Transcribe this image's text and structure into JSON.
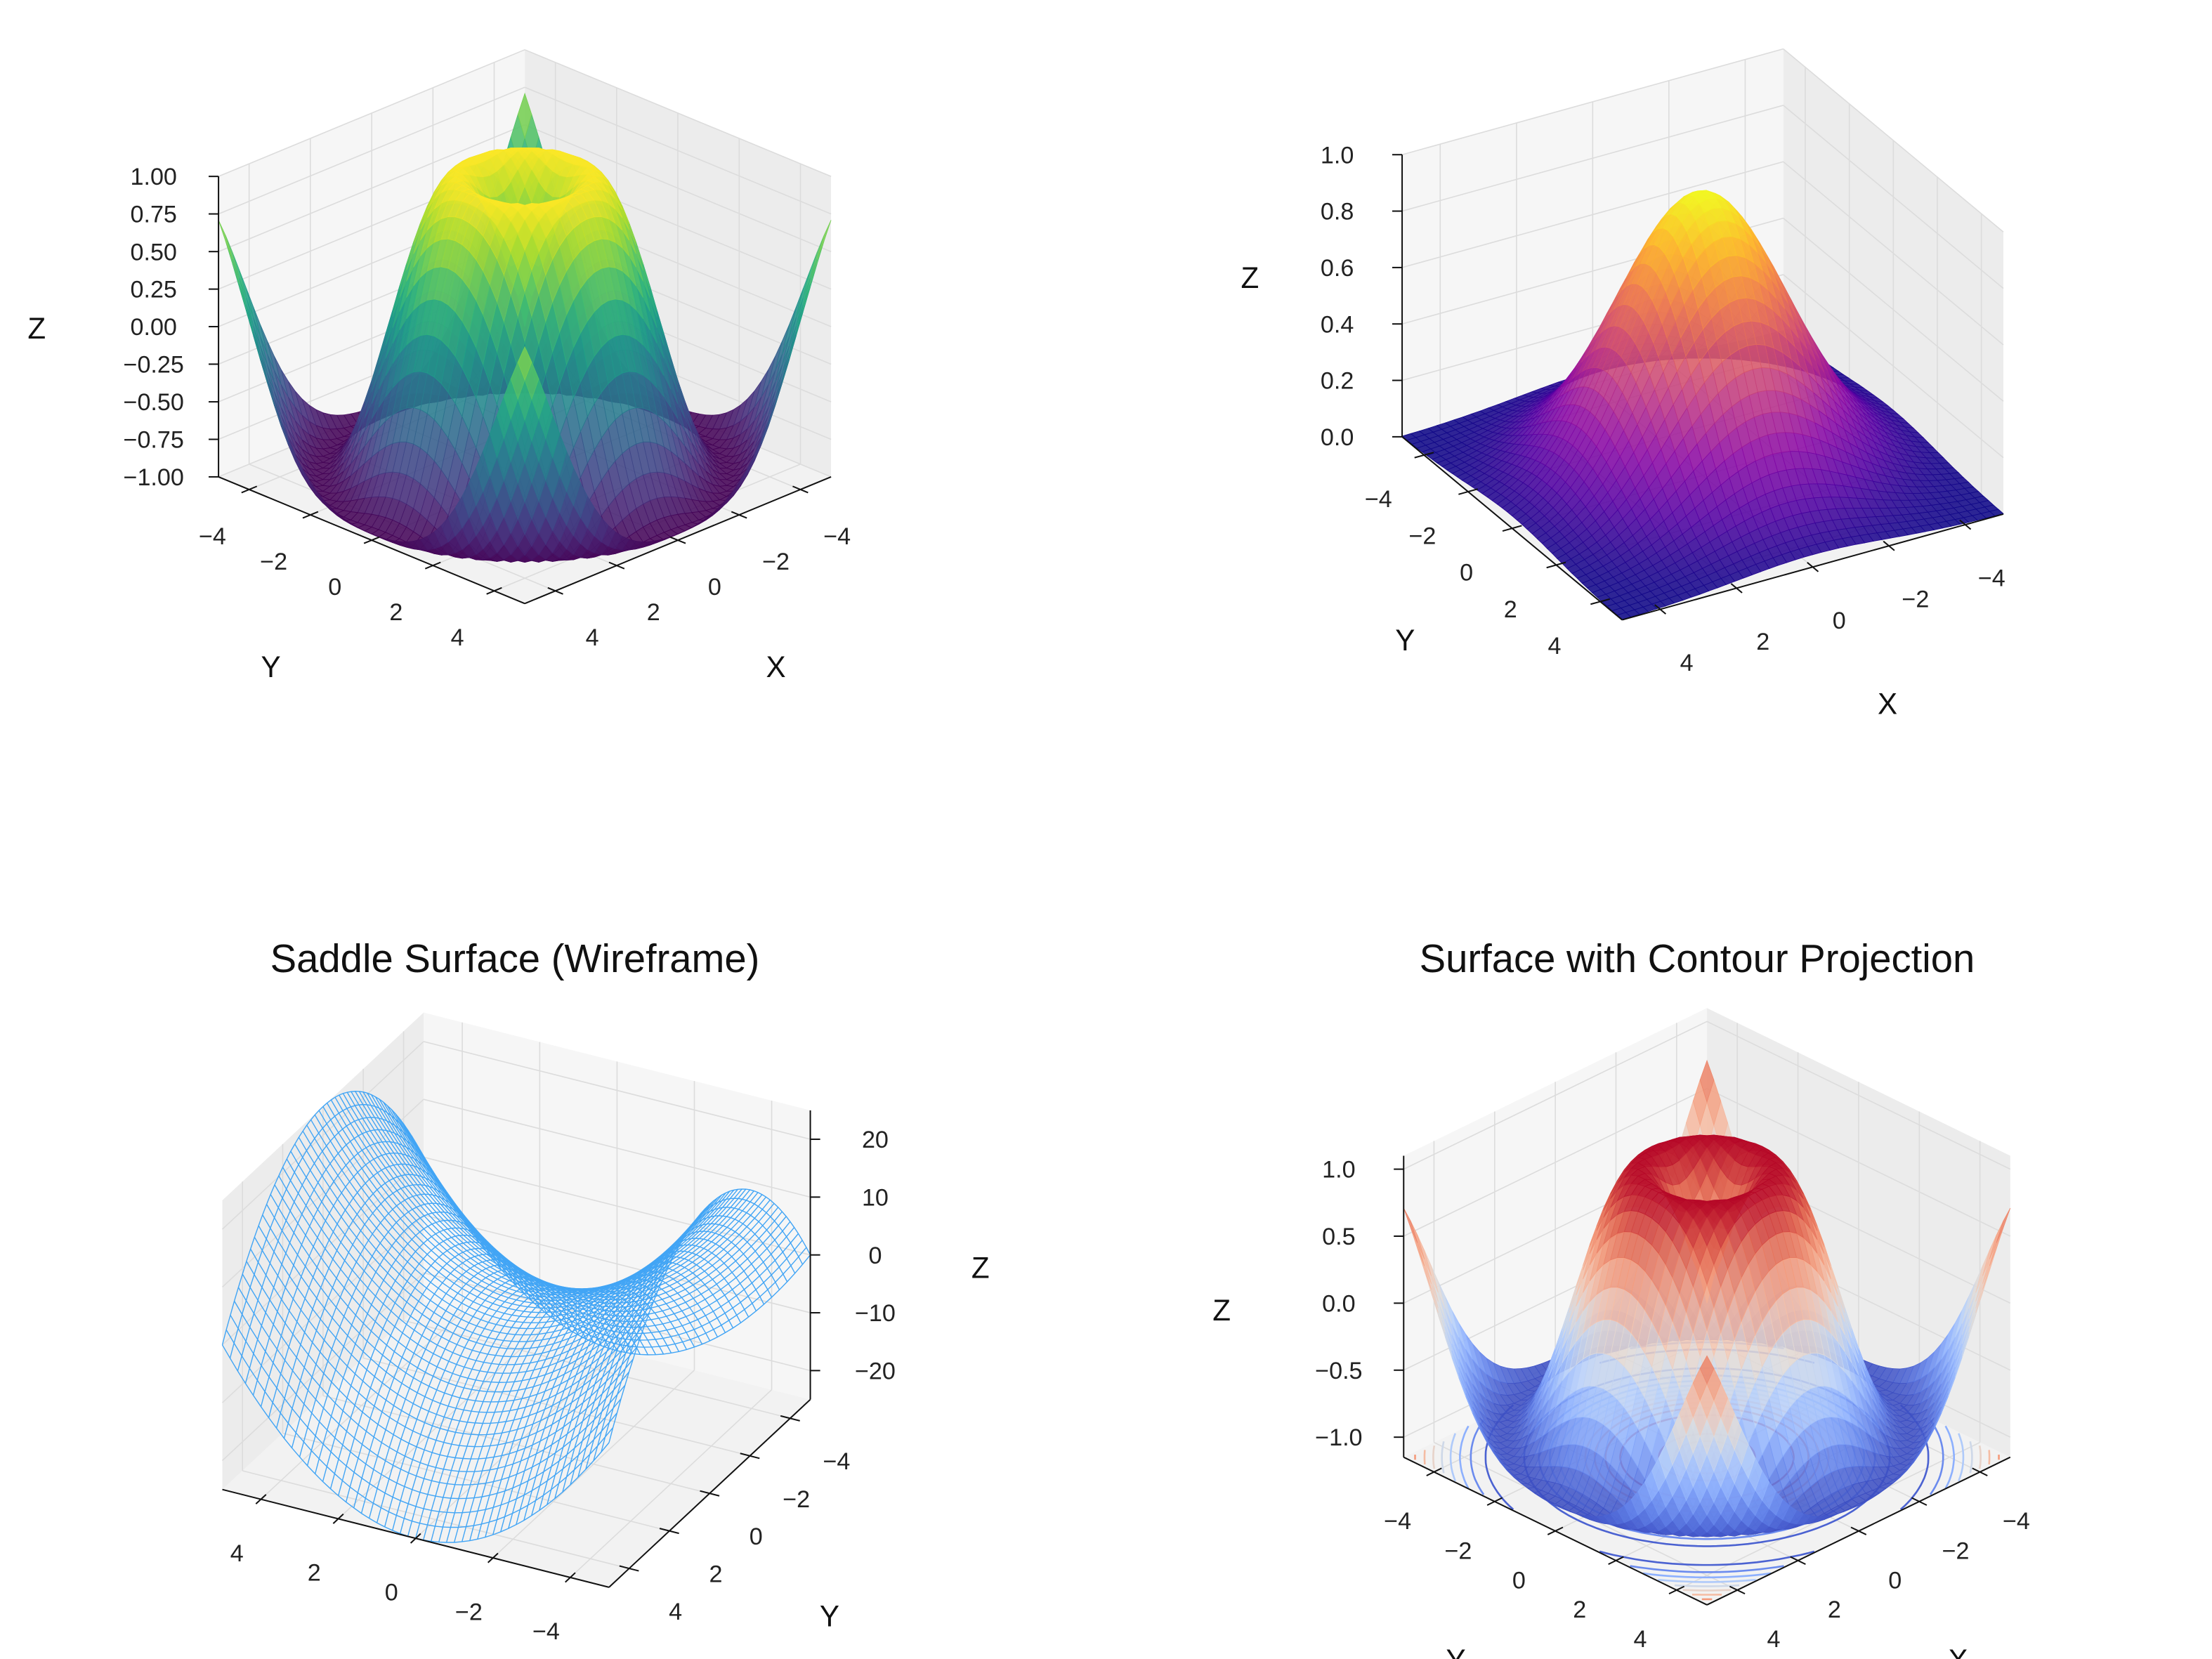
{
  "figure": {
    "layout": "2x2 grid of 3D plots"
  },
  "chart_data": [
    {
      "type": "surface",
      "title": "",
      "xlabel": "X",
      "ylabel": "Y",
      "zlabel": "Z",
      "xlim": [
        -5,
        5
      ],
      "ylim": [
        -5,
        5
      ],
      "zlim": [
        -1,
        1
      ],
      "xticks": {
        "values": [
          -4,
          -2,
          0,
          2,
          4
        ],
        "labels": [
          "−4",
          "−2",
          "0",
          "2",
          "4"
        ]
      },
      "yticks": {
        "values": [
          -4,
          -2,
          0,
          2,
          4
        ],
        "labels": [
          "−4",
          "−2",
          "0",
          "2",
          "4"
        ]
      },
      "zticks": {
        "values": [
          -1,
          -0.75,
          -0.5,
          -0.25,
          0,
          0.25,
          0.5,
          0.75,
          1
        ],
        "labels": [
          "−1.00",
          "−0.75",
          "−0.50",
          "−0.25",
          "0.00",
          "0.25",
          "0.50",
          "0.75",
          "1.00"
        ]
      },
      "colormap": "viridis",
      "grid": true
    },
    {
      "type": "surface",
      "title": "",
      "xlabel": "X",
      "ylabel": "Y",
      "zlabel": "Z",
      "xlim": [
        -5,
        5
      ],
      "ylim": [
        -5,
        5
      ],
      "zlim": [
        0,
        1
      ],
      "xticks": {
        "values": [
          -4,
          -2,
          0,
          2,
          4
        ],
        "labels": [
          "−4",
          "−2",
          "0",
          "2",
          "4"
        ]
      },
      "yticks": {
        "values": [
          -4,
          -2,
          0,
          2,
          4
        ],
        "labels": [
          "−4",
          "−2",
          "0",
          "2",
          "4"
        ]
      },
      "zticks": {
        "values": [
          0,
          0.2,
          0.4,
          0.6,
          0.8,
          1
        ],
        "labels": [
          "0.0",
          "0.2",
          "0.4",
          "0.6",
          "0.8",
          "1.0"
        ]
      },
      "colormap": "plasma",
      "grid": true
    },
    {
      "type": "wireframe",
      "title": "Saddle Surface (Wireframe)",
      "xlabel": "",
      "ylabel": "Y",
      "zlabel": "Z",
      "xlim": [
        -5,
        5
      ],
      "ylim": [
        -5,
        5
      ],
      "zlim": [
        -25,
        25
      ],
      "xticks": {
        "values": [
          -4,
          -2,
          0,
          2,
          4
        ],
        "labels": [
          "−4",
          "−2",
          "0",
          "2",
          "4"
        ]
      },
      "yticks": {
        "values": [
          -4,
          -2,
          0,
          2,
          4
        ],
        "labels": [
          "−4",
          "−2",
          "0",
          "2",
          "4"
        ]
      },
      "zticks": {
        "values": [
          -20,
          -10,
          0,
          10,
          20
        ],
        "labels": [
          "−20",
          "−10",
          "0",
          "10",
          "20"
        ]
      },
      "line_color": "#42a5f5",
      "grid": true
    },
    {
      "type": "surface",
      "title": "Surface with Contour Projection",
      "xlabel": "X",
      "ylabel": "Y",
      "zlabel": "Z",
      "xlim": [
        -5,
        5
      ],
      "ylim": [
        -5,
        5
      ],
      "zlim": [
        -1.15,
        1.1
      ],
      "xticks": {
        "values": [
          -4,
          -2,
          0,
          2,
          4
        ],
        "labels": [
          "−4",
          "−2",
          "0",
          "2",
          "4"
        ]
      },
      "yticks": {
        "values": [
          -4,
          -2,
          0,
          2,
          4
        ],
        "labels": [
          "−4",
          "−2",
          "0",
          "2",
          "4"
        ]
      },
      "zticks": {
        "values": [
          -1,
          -0.5,
          0,
          0.5,
          1
        ],
        "labels": [
          "−1.0",
          "−0.5",
          "0.0",
          "0.5",
          "1.0"
        ]
      },
      "colormap": "coolwarm",
      "contour_projection": true,
      "grid": true
    }
  ]
}
